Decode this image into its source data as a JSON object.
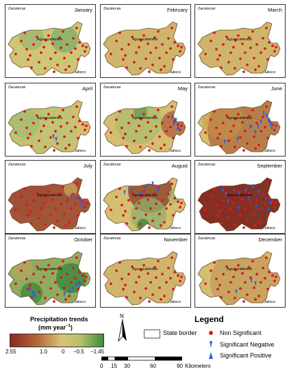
{
  "map_labels": {
    "north": "Zacatecas",
    "center": "Aguascalientes",
    "south": "Jalisco"
  },
  "months": [
    {
      "name": "January",
      "pattern": "jan"
    },
    {
      "name": "February",
      "pattern": "mild"
    },
    {
      "name": "March",
      "pattern": "mild"
    },
    {
      "name": "April",
      "pattern": "apr"
    },
    {
      "name": "May",
      "pattern": "may"
    },
    {
      "name": "June",
      "pattern": "jun"
    },
    {
      "name": "July",
      "pattern": "jul"
    },
    {
      "name": "August",
      "pattern": "aug"
    },
    {
      "name": "September",
      "pattern": "sep"
    },
    {
      "name": "October",
      "pattern": "oct"
    },
    {
      "name": "November",
      "pattern": "mild"
    },
    {
      "name": "December",
      "pattern": "dec"
    }
  ],
  "precip_legend": {
    "title": "Precipitation trends",
    "unit": "(mm year",
    "unit_sup": "−1",
    "unit_close": ")",
    "ticks": [
      "2.55",
      "1.0",
      "0",
      "−0.5",
      "−1.45"
    ],
    "colors": [
      "#8b2a1f",
      "#b56a3c",
      "#d9c276",
      "#b6c26a",
      "#3f8a3c"
    ]
  },
  "north_arrow": "N",
  "legend": {
    "title": "Legend",
    "items": [
      "State border",
      "Non Significant",
      "Significant Negative",
      "Significant Positive"
    ]
  },
  "scale_bar": {
    "ticks": [
      "0",
      "15",
      "30",
      "60",
      "90"
    ],
    "unit": "Kilometers"
  },
  "colors": {
    "station": "#e0181b",
    "trend_marker": "#2f5fe0"
  }
}
